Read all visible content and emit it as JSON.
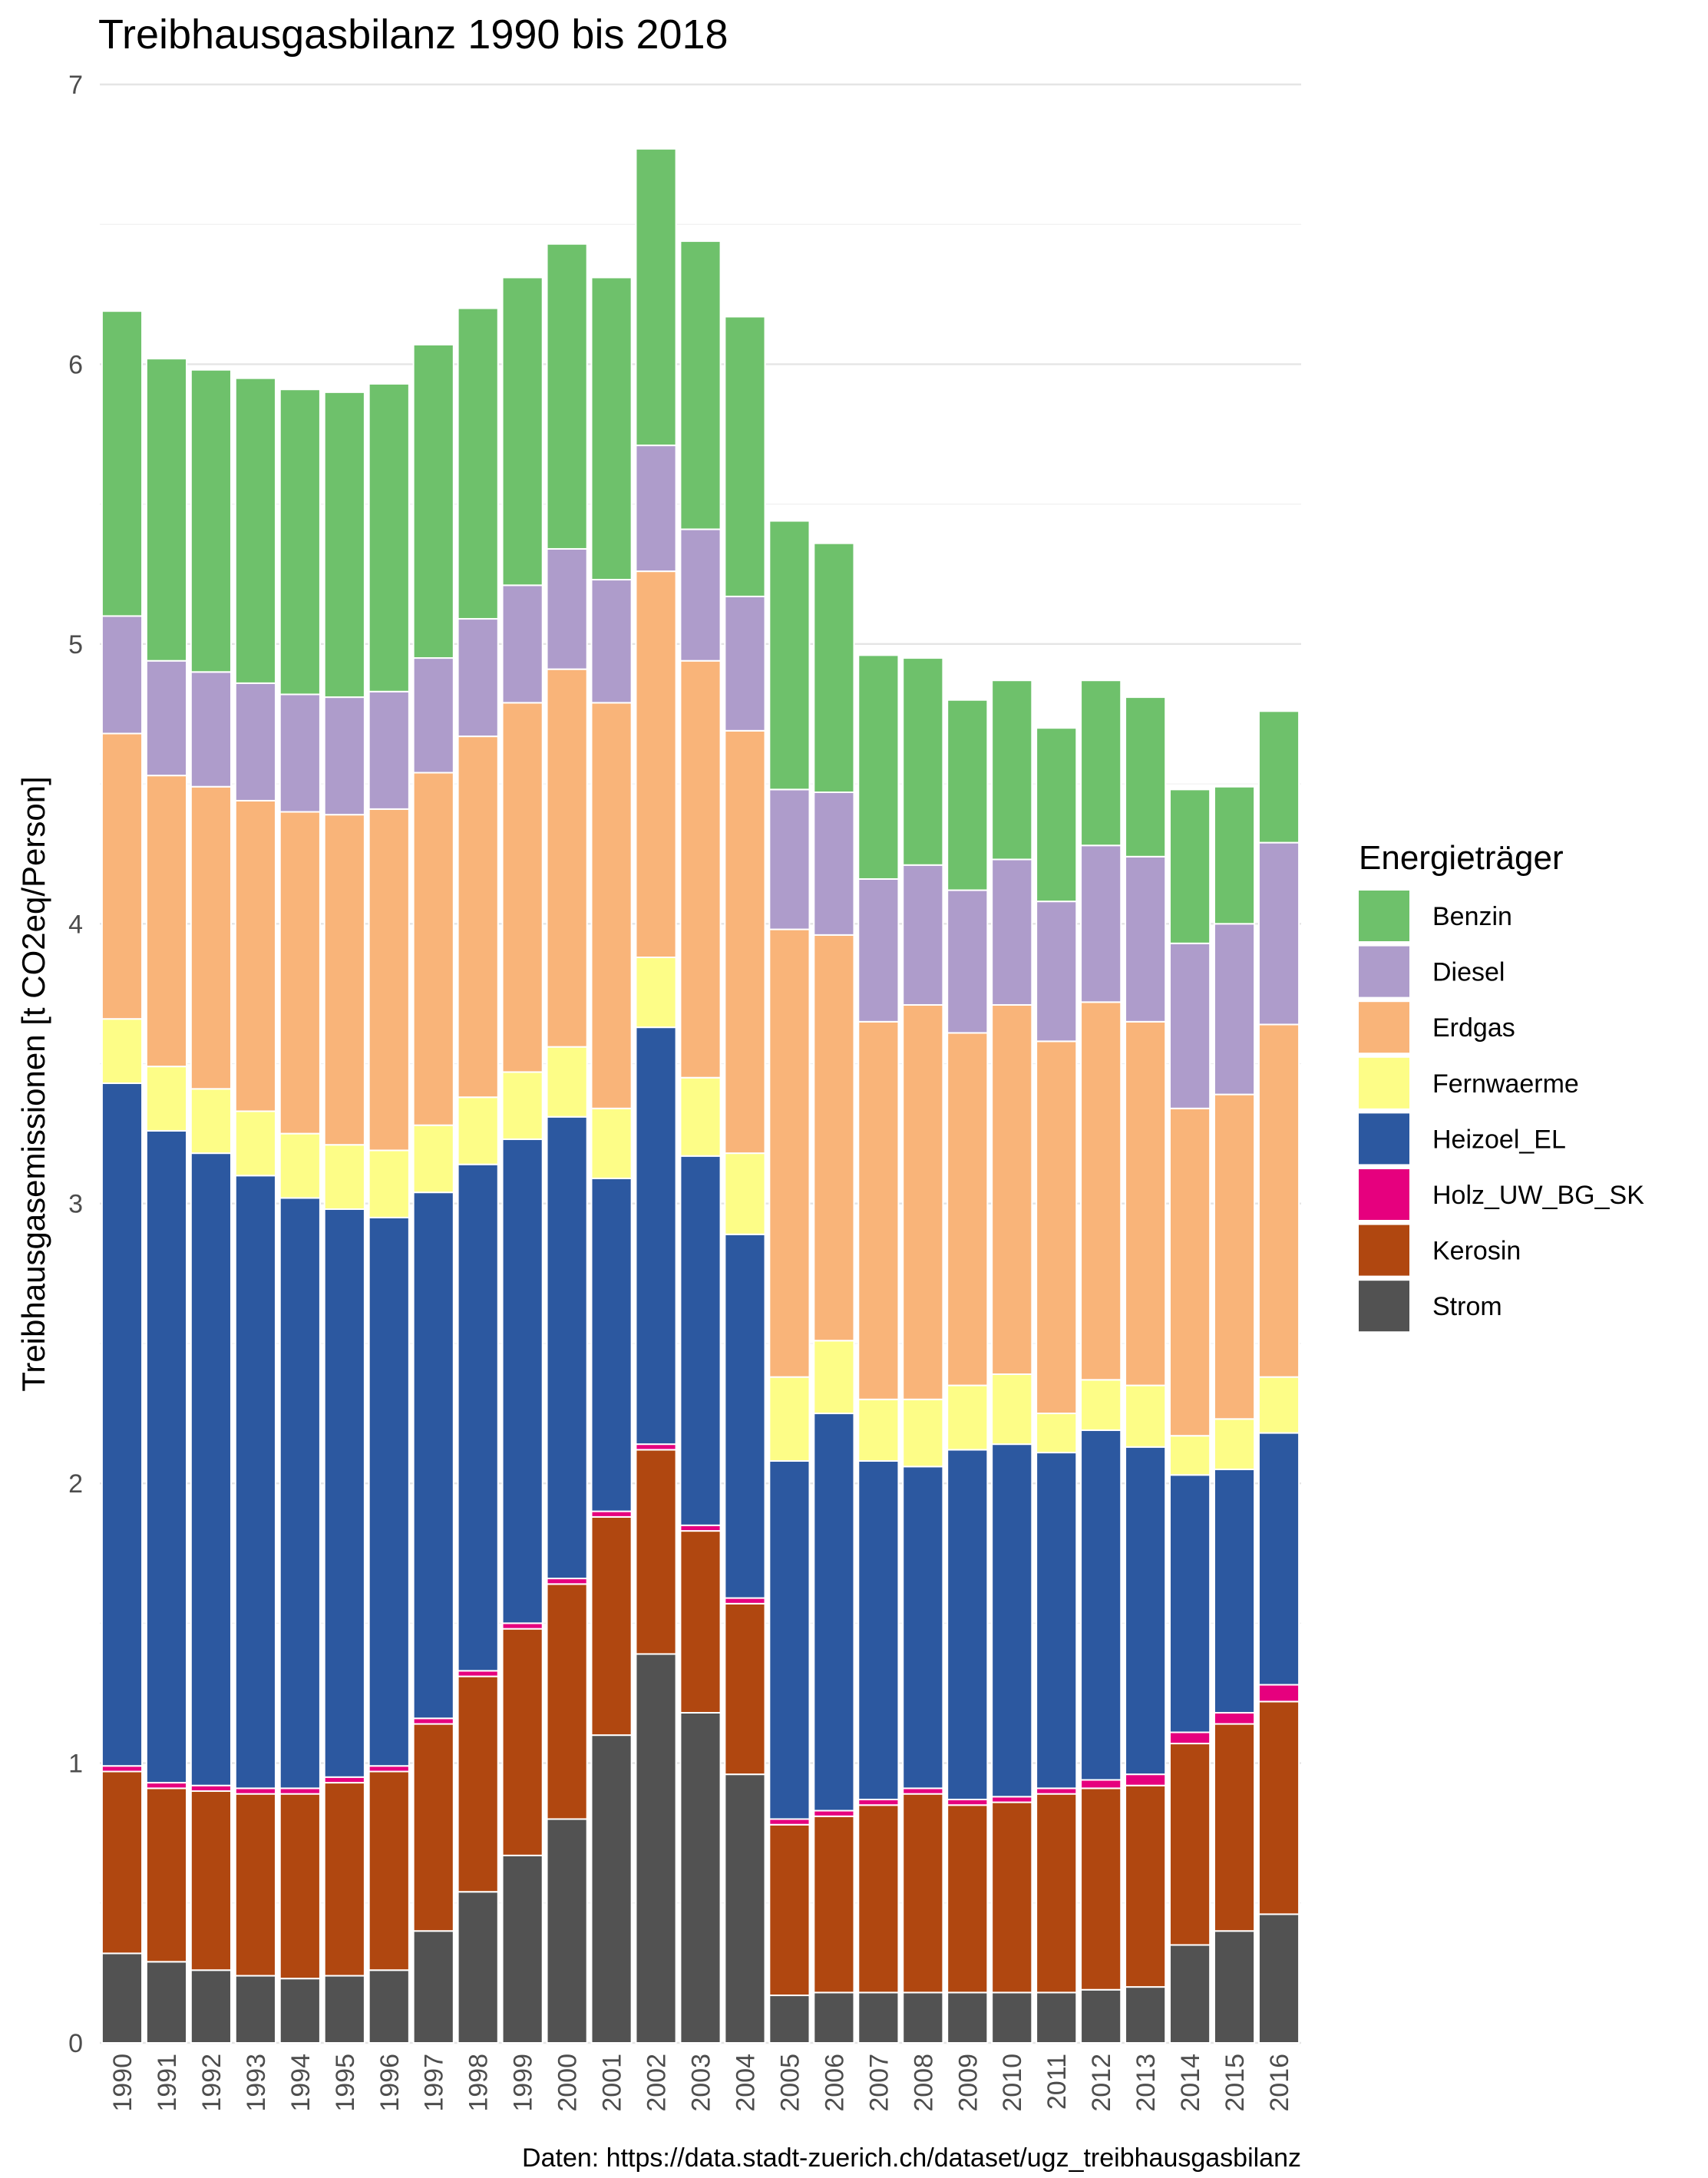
{
  "chart_data": {
    "type": "bar",
    "stacked": true,
    "title": "Treibhausgasbilanz 1990 bis 2018",
    "xlabel": "",
    "ylabel": "Treibhausgasemissionen [t CO2eq/Person]",
    "caption": "Daten: https://data.stadt-zuerich.ch/dataset/ugz_treibhausgasbilanz",
    "ylim": [
      0,
      7
    ],
    "yticks": [
      0,
      1,
      2,
      3,
      4,
      5,
      6,
      7
    ],
    "grid": true,
    "legend_title": "Energieträger",
    "legend_position": "right",
    "categories": [
      "1990",
      "1991",
      "1992",
      "1993",
      "1994",
      "1995",
      "1996",
      "1997",
      "1998",
      "1999",
      "2000",
      "2001",
      "2002",
      "2003",
      "2004",
      "2005",
      "2006",
      "2007",
      "2008",
      "2009",
      "2010",
      "2011",
      "2012",
      "2013",
      "2014",
      "2015",
      "2016"
    ],
    "stack_order": [
      "Strom",
      "Kerosin",
      "Holz_UW_BG_SK",
      "Heizoel_EL",
      "Fernwaerme",
      "Erdgas",
      "Diesel",
      "Benzin"
    ],
    "series": [
      {
        "name": "Benzin",
        "color": "#6ec16b",
        "values": [
          1.09,
          1.08,
          1.08,
          1.09,
          1.09,
          1.09,
          1.1,
          1.12,
          1.11,
          1.1,
          1.09,
          1.08,
          1.06,
          1.03,
          1.0,
          0.96,
          0.89,
          0.8,
          0.74,
          0.68,
          0.64,
          0.62,
          0.59,
          0.57,
          0.55,
          0.49,
          0.47
        ]
      },
      {
        "name": "Diesel",
        "color": "#ae9ccb",
        "values": [
          0.42,
          0.41,
          0.41,
          0.42,
          0.42,
          0.42,
          0.42,
          0.41,
          0.42,
          0.42,
          0.43,
          0.44,
          0.45,
          0.47,
          0.48,
          0.5,
          0.51,
          0.51,
          0.5,
          0.51,
          0.52,
          0.5,
          0.56,
          0.59,
          0.59,
          0.61,
          0.65
        ]
      },
      {
        "name": "Erdgas",
        "color": "#f9b479",
        "values": [
          1.02,
          1.04,
          1.08,
          1.11,
          1.15,
          1.18,
          1.22,
          1.26,
          1.29,
          1.32,
          1.35,
          1.45,
          1.38,
          1.49,
          1.51,
          1.6,
          1.45,
          1.35,
          1.41,
          1.26,
          1.32,
          1.33,
          1.35,
          1.3,
          1.17,
          1.16,
          1.26
        ]
      },
      {
        "name": "Fernwaerme",
        "color": "#fdfd87",
        "values": [
          0.23,
          0.23,
          0.23,
          0.23,
          0.23,
          0.23,
          0.24,
          0.24,
          0.24,
          0.24,
          0.25,
          0.25,
          0.25,
          0.28,
          0.29,
          0.3,
          0.26,
          0.22,
          0.24,
          0.23,
          0.25,
          0.14,
          0.18,
          0.22,
          0.14,
          0.18,
          0.2
        ]
      },
      {
        "name": "Heizoel_EL",
        "color": "#2c58a0",
        "values": [
          2.44,
          2.33,
          2.26,
          2.19,
          2.11,
          2.03,
          1.96,
          1.88,
          1.81,
          1.73,
          1.65,
          1.19,
          1.49,
          1.32,
          1.3,
          1.28,
          1.42,
          1.21,
          1.15,
          1.25,
          1.26,
          1.2,
          1.25,
          1.17,
          0.92,
          0.87,
          0.9
        ]
      },
      {
        "name": "Holz_UW_BG_SK",
        "color": "#e6007e",
        "values": [
          0.02,
          0.02,
          0.02,
          0.02,
          0.02,
          0.02,
          0.02,
          0.02,
          0.02,
          0.02,
          0.02,
          0.02,
          0.02,
          0.02,
          0.02,
          0.02,
          0.02,
          0.02,
          0.02,
          0.02,
          0.02,
          0.02,
          0.03,
          0.04,
          0.04,
          0.04,
          0.06
        ]
      },
      {
        "name": "Kerosin",
        "color": "#b04710",
        "values": [
          0.65,
          0.62,
          0.64,
          0.65,
          0.66,
          0.69,
          0.71,
          0.74,
          0.77,
          0.81,
          0.84,
          0.78,
          0.73,
          0.65,
          0.61,
          0.61,
          0.63,
          0.67,
          0.71,
          0.67,
          0.68,
          0.71,
          0.72,
          0.72,
          0.72,
          0.74,
          0.76
        ]
      },
      {
        "name": "Strom",
        "color": "#525252",
        "values": [
          0.32,
          0.29,
          0.26,
          0.24,
          0.23,
          0.24,
          0.26,
          0.4,
          0.54,
          0.67,
          0.8,
          1.1,
          1.39,
          1.18,
          0.96,
          0.17,
          0.18,
          0.18,
          0.18,
          0.18,
          0.18,
          0.18,
          0.19,
          0.2,
          0.35,
          0.4,
          0.46
        ]
      }
    ]
  }
}
